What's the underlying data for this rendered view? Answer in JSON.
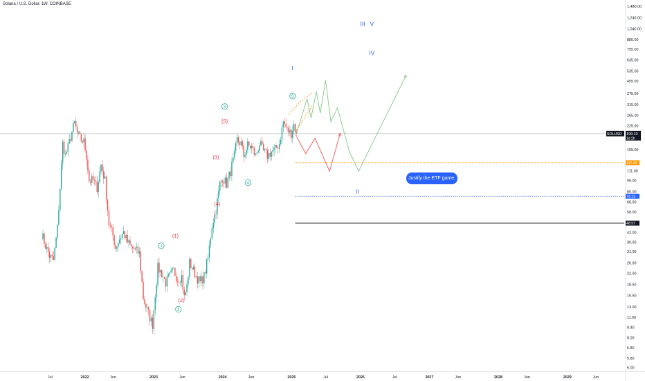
{
  "header": {
    "symbol_title": "Solana / U.S. Dollar, 1W, COINBASE"
  },
  "colors": {
    "up": "#26a69a",
    "down": "#ef5350",
    "wave_blue": "#2962ff",
    "wave_green": "#26a69a",
    "wave_red": "#f23645",
    "proj_green": "#81c784",
    "proj_red": "#ef5350",
    "level_orange": "#ff9800",
    "level_blue": "#2962ff",
    "level_black": "#131722",
    "price_line": "#787b86",
    "axis_text": "#131722"
  },
  "callout": {
    "text": "Justify the ETF game."
  },
  "chart_data": {
    "type": "candlestick",
    "symbol": "SOLUSD",
    "exchange": "COINBASE",
    "interval": "1W",
    "y_scale": "log",
    "ylim": [
      4.6,
      1600
    ],
    "xlim": [
      "2021-05-01",
      "2029-12-31"
    ],
    "y_ticks": [
      "1,480.00",
      "1,240.00",
      "1,040.00",
      "880.00",
      "755.00",
      "635.00",
      "535.00",
      "455.00",
      "375.00",
      "315.00",
      "265.00",
      "225.00",
      "155.00",
      "111.00",
      "95.00",
      "80.00",
      "68.00",
      "58.00",
      "42.00",
      "36.00",
      "31.00",
      "26.00",
      "22.00",
      "18.50",
      "15.50",
      "13.00",
      "11.00",
      "9.40",
      "8.00",
      "6.80",
      "5.80",
      "5.00"
    ],
    "x_ticks": [
      {
        "label": "Jul",
        "date": "2021-07-01"
      },
      {
        "label": "2022",
        "date": "2022-01-01"
      },
      {
        "label": "Jun",
        "date": "2022-06-01"
      },
      {
        "label": "2023",
        "date": "2023-01-01"
      },
      {
        "label": "Jun",
        "date": "2023-06-01"
      },
      {
        "label": "2024",
        "date": "2024-01-01"
      },
      {
        "label": "Jun",
        "date": "2024-06-01"
      },
      {
        "label": "2025",
        "date": "2025-01-01"
      },
      {
        "label": "Jul",
        "date": "2025-07-01"
      },
      {
        "label": "2026",
        "date": "2026-01-01"
      },
      {
        "label": "Jul",
        "date": "2026-07-01"
      },
      {
        "label": "2027",
        "date": "2027-01-01"
      },
      {
        "label": "Jun",
        "date": "2027-06-01"
      },
      {
        "label": "2028",
        "date": "2028-01-01"
      },
      {
        "label": "Jun",
        "date": "2028-06-01"
      },
      {
        "label": "2029",
        "date": "2029-01-01"
      },
      {
        "label": "Jun",
        "date": "2029-06-01"
      }
    ],
    "grid": false,
    "current_price": {
      "label": "SOLUSD",
      "value": "199.13",
      "countdown": "1d 2h",
      "price": 199.13
    },
    "levels": [
      {
        "label": "125.89",
        "price": 125.89,
        "style": "dashed",
        "color": "#ff9800",
        "start": "2025-01-20"
      },
      {
        "label": "74.23",
        "price": 74.23,
        "style": "dotted",
        "color": "#2962ff",
        "start": "2025-01-20"
      },
      {
        "label": "48.57",
        "price": 48.57,
        "style": "solid",
        "color": "#131722",
        "start": "2025-01-20"
      }
    ],
    "close_path": [
      [
        "2021-05-17",
        41
      ],
      [
        "2021-06-07",
        34
      ],
      [
        "2021-06-28",
        29
      ],
      [
        "2021-07-19",
        27
      ],
      [
        "2021-08-09",
        45
      ],
      [
        "2021-08-23",
        85
      ],
      [
        "2021-09-06",
        170
      ],
      [
        "2021-09-20",
        140
      ],
      [
        "2021-10-04",
        160
      ],
      [
        "2021-10-25",
        205
      ],
      [
        "2021-11-08",
        235
      ],
      [
        "2021-11-22",
        200
      ],
      [
        "2021-12-06",
        185
      ],
      [
        "2021-12-27",
        175
      ],
      [
        "2022-01-10",
        140
      ],
      [
        "2022-01-24",
        95
      ],
      [
        "2022-02-14",
        95
      ],
      [
        "2022-03-07",
        85
      ],
      [
        "2022-03-28",
        122
      ],
      [
        "2022-04-18",
        95
      ],
      [
        "2022-05-09",
        48
      ],
      [
        "2022-05-30",
        40
      ],
      [
        "2022-06-13",
        33
      ],
      [
        "2022-07-04",
        38
      ],
      [
        "2022-07-25",
        42
      ],
      [
        "2022-08-15",
        36
      ],
      [
        "2022-09-05",
        33
      ],
      [
        "2022-09-26",
        32
      ],
      [
        "2022-10-17",
        30
      ],
      [
        "2022-11-07",
        15
      ],
      [
        "2022-11-21",
        13
      ],
      [
        "2022-12-12",
        11
      ],
      [
        "2022-12-26",
        9.8
      ],
      [
        "2023-01-09",
        16
      ],
      [
        "2023-01-23",
        24
      ],
      [
        "2023-02-13",
        22
      ],
      [
        "2023-03-06",
        19
      ],
      [
        "2023-03-27",
        21
      ],
      [
        "2023-04-17",
        23
      ],
      [
        "2023-05-08",
        20
      ],
      [
        "2023-05-29",
        21
      ],
      [
        "2023-06-12",
        15
      ],
      [
        "2023-06-26",
        18
      ],
      [
        "2023-07-10",
        26
      ],
      [
        "2023-07-24",
        24
      ],
      [
        "2023-08-14",
        21
      ],
      [
        "2023-09-04",
        19
      ],
      [
        "2023-09-25",
        21
      ],
      [
        "2023-10-16",
        28
      ],
      [
        "2023-11-06",
        47
      ],
      [
        "2023-11-27",
        60
      ],
      [
        "2023-12-18",
        90
      ],
      [
        "2024-01-01",
        100
      ],
      [
        "2024-01-22",
        90
      ],
      [
        "2024-02-12",
        110
      ],
      [
        "2024-03-04",
        140
      ],
      [
        "2024-03-18",
        180
      ],
      [
        "2024-04-08",
        170
      ],
      [
        "2024-04-22",
        140
      ],
      [
        "2024-05-13",
        165
      ],
      [
        "2024-06-03",
        160
      ],
      [
        "2024-06-24",
        140
      ],
      [
        "2024-07-15",
        170
      ],
      [
        "2024-08-05",
        150
      ],
      [
        "2024-08-26",
        140
      ],
      [
        "2024-09-16",
        150
      ],
      [
        "2024-10-07",
        155
      ],
      [
        "2024-10-28",
        170
      ],
      [
        "2024-11-18",
        240
      ],
      [
        "2024-12-09",
        210
      ],
      [
        "2024-12-30",
        200
      ],
      [
        "2025-01-13",
        230
      ],
      [
        "2025-01-27",
        199.13
      ]
    ],
    "wave_labels": [
      {
        "text": "I",
        "date": "2025-01-06",
        "price": 560,
        "color": "#2962ff",
        "style": "plain"
      },
      {
        "text": "III",
        "date": "2026-01-12",
        "price": 1120,
        "color": "#2962ff",
        "style": "plain"
      },
      {
        "text": "V",
        "date": "2026-03-02",
        "price": 1120,
        "color": "#2962ff",
        "style": "plain"
      },
      {
        "text": "IV",
        "date": "2026-03-02",
        "price": 710,
        "color": "#2962ff",
        "style": "plain"
      },
      {
        "text": "II",
        "date": "2025-12-15",
        "price": 80,
        "color": "#2962ff",
        "style": "plain"
      },
      {
        "text": "1",
        "date": "2023-02-10",
        "price": 34,
        "color": "#26a69a",
        "style": "circle"
      },
      {
        "text": "2",
        "date": "2023-05-12",
        "price": 12.5,
        "color": "#26a69a",
        "style": "circle"
      },
      {
        "text": "3",
        "date": "2024-01-12",
        "price": 305,
        "color": "#26a69a",
        "style": "circle"
      },
      {
        "text": "4",
        "date": "2024-05-15",
        "price": 92,
        "color": "#26a69a",
        "style": "circle"
      },
      {
        "text": "5",
        "date": "2025-01-06",
        "price": 360,
        "color": "#26a69a",
        "style": "circle"
      },
      {
        "text": "(1)",
        "date": "2023-04-26",
        "price": 40,
        "color": "#f23645",
        "style": "plain"
      },
      {
        "text": "(2)",
        "date": "2023-05-28",
        "price": 14.5,
        "color": "#f23645",
        "style": "plain"
      },
      {
        "text": "(3)",
        "date": "2023-11-27",
        "price": 138,
        "color": "#f23645",
        "style": "plain"
      },
      {
        "text": "(4)",
        "date": "2023-12-04",
        "price": 66,
        "color": "#f23645",
        "style": "plain"
      },
      {
        "text": "(5)",
        "date": "2024-01-12",
        "price": 243,
        "color": "#f23645",
        "style": "plain"
      }
    ],
    "projections": [
      {
        "name": "",
        "color": "#81c784",
        "style": "solid",
        "points": [
          [
            "2025-01-27",
            199
          ],
          [
            "2025-03-24",
            345
          ],
          [
            "2025-04-14",
            255
          ],
          [
            "2025-05-12",
            385
          ],
          [
            "2025-06-02",
            275
          ],
          [
            "2025-06-30",
            460
          ],
          [
            "2025-07-28",
            240
          ],
          [
            "2025-09-01",
            300
          ],
          [
            "2025-11-03",
            150
          ],
          [
            "2025-12-22",
            110
          ],
          [
            "2026-08-31",
            500
          ]
        ]
      },
      {
        "name": "",
        "color": "#ff9800",
        "style": "dashed",
        "points": [
          [
            "2024-12-16",
            270
          ],
          [
            "2025-02-17",
            330
          ],
          [
            "2025-04-21",
            380
          ]
        ]
      },
      {
        "name": "",
        "color": "#ff9800",
        "style": "dashed",
        "points": [
          [
            "2025-01-27",
            210
          ],
          [
            "2025-03-17",
            265
          ],
          [
            "2025-04-21",
            310
          ]
        ]
      },
      {
        "name": "",
        "color": "#ef5350",
        "style": "solid",
        "points": [
          [
            "2025-01-27",
            190
          ],
          [
            "2025-03-17",
            145
          ],
          [
            "2025-05-05",
            185
          ],
          [
            "2025-07-21",
            110
          ],
          [
            "2025-09-15",
            200
          ]
        ]
      }
    ]
  }
}
